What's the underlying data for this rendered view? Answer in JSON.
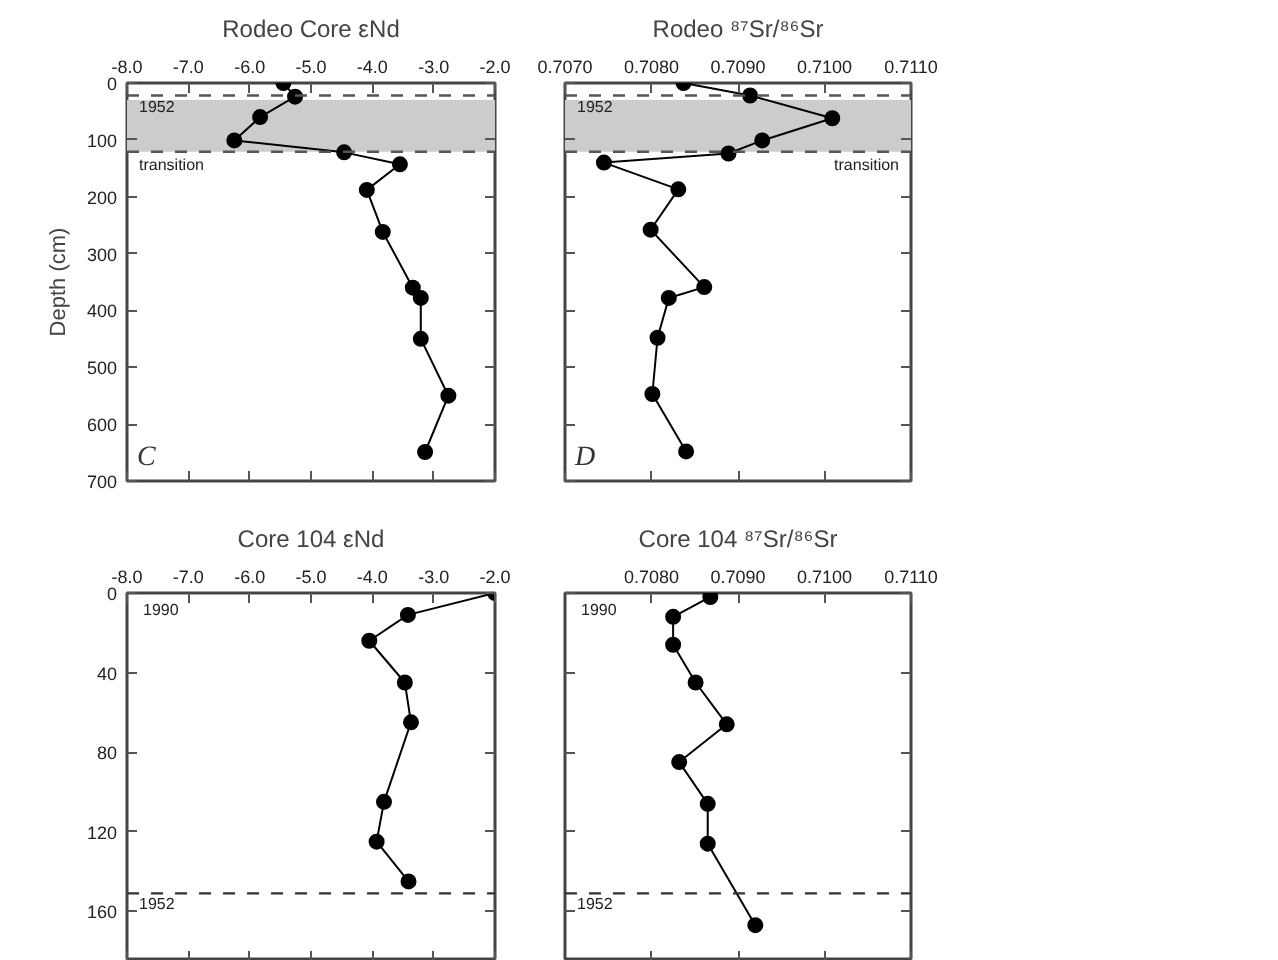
{
  "chart_data": [
    {
      "type": "line",
      "title": "Rodeo Core εNd",
      "ylabel": "Depth (cm)",
      "marker": "circle",
      "line_style": "solid",
      "grid": false,
      "xlim": [
        -8,
        -2
      ],
      "xticks": [
        {
          "value": -8,
          "label": "-8.0"
        },
        {
          "value": -7,
          "label": "-7.0"
        },
        {
          "value": -6,
          "label": "-6.0"
        },
        {
          "value": -5,
          "label": "-5.0"
        },
        {
          "value": -4,
          "label": "-4.0"
        },
        {
          "value": -3,
          "label": "-3.0"
        },
        {
          "value": -2,
          "label": "-2.0"
        }
      ],
      "ylim": [
        700,
        0
      ],
      "yticks": [
        0,
        100,
        200,
        300,
        400,
        500,
        600,
        700
      ],
      "series": [
        {
          "color": "#000000",
          "x": [
            -5.45,
            -5.26,
            -5.83,
            -6.25,
            -4.46,
            -3.55,
            -4.09,
            -3.83,
            -3.34,
            -3.21,
            -3.21,
            -2.76,
            -3.14
          ],
          "values": [
            0,
            24,
            60,
            101,
            122,
            143,
            188,
            262,
            360,
            378,
            450,
            550,
            649
          ]
        }
      ],
      "bands": [
        {
          "axis": "y",
          "from": 30,
          "to": 121,
          "color": "#cccccc"
        }
      ],
      "ref_lines": [
        {
          "axis": "y",
          "value": 22,
          "color": "#555555",
          "line_style": "dashed"
        },
        {
          "axis": "y",
          "value": 121,
          "color": "#555555",
          "line_style": "dashed"
        }
      ],
      "annotations": [
        "C",
        "1952",
        "transition"
      ]
    },
    {
      "type": "line",
      "title": "Rodeo ⁸⁷Sr/⁸⁶Sr",
      "marker": "circle",
      "line_style": "solid",
      "grid": false,
      "tick_labels": "x",
      "xlim": [
        0.707,
        0.711
      ],
      "xticks": [
        {
          "value": 0.707,
          "label": "0.7070"
        },
        {
          "value": 0.708,
          "label": "0.7080"
        },
        {
          "value": 0.709,
          "label": "0.7090"
        },
        {
          "value": 0.71,
          "label": "0.7100"
        },
        {
          "value": 0.711,
          "label": "0.7110"
        }
      ],
      "ylim": [
        700,
        0
      ],
      "yticks": [
        0,
        100,
        200,
        300,
        400,
        500,
        600,
        700
      ],
      "series": [
        {
          "color": "#000000",
          "x": [
            0.70837,
            0.70914,
            0.71009,
            0.70928,
            0.70889,
            0.70745,
            0.70831,
            0.70799,
            0.70861,
            0.7082,
            0.70807,
            0.70801,
            0.7084
          ],
          "values": [
            0,
            22,
            62,
            101,
            124,
            140,
            187,
            258,
            359,
            378,
            448,
            547,
            648
          ]
        }
      ],
      "bands": [
        {
          "axis": "y",
          "from": 30,
          "to": 121,
          "color": "#cccccc"
        }
      ],
      "ref_lines": [
        {
          "axis": "y",
          "value": 22,
          "color": "#555555",
          "line_style": "dashed"
        },
        {
          "axis": "y",
          "value": 121,
          "color": "#555555",
          "line_style": "dashed"
        }
      ],
      "annotations": [
        "D",
        "1952",
        "transition"
      ]
    },
    {
      "type": "line",
      "title": "Core 104 εNd",
      "marker": "circle",
      "line_style": "solid",
      "grid": false,
      "xlim": [
        -8,
        -2
      ],
      "xticks": [
        {
          "value": -8,
          "label": "-8.0"
        },
        {
          "value": -7,
          "label": "-7.0"
        },
        {
          "value": -6,
          "label": "-6.0"
        },
        {
          "value": -5,
          "label": "-5.0"
        },
        {
          "value": -4,
          "label": "-4.0"
        },
        {
          "value": -3,
          "label": "-3.0"
        },
        {
          "value": -2,
          "label": "-2.0"
        }
      ],
      "ylim": [
        185,
        0
      ],
      "yticks": [
        0,
        40,
        80,
        120,
        160
      ],
      "series": [
        {
          "color": "#000000",
          "x": [
            -2.0,
            -3.42,
            -4.05,
            -3.47,
            -3.37,
            -3.81,
            -3.93,
            -3.41
          ],
          "values": [
            0,
            11,
            24,
            45,
            65,
            105,
            125,
            145
          ]
        }
      ],
      "ref_lines": [
        {
          "axis": "y",
          "value": 151,
          "color": "#333333",
          "line_style": "dashed"
        }
      ],
      "annotations": [
        "1990",
        "1952"
      ]
    },
    {
      "type": "line",
      "title": "Core 104 ⁸⁷Sr/⁸⁶Sr",
      "marker": "circle",
      "line_style": "solid",
      "grid": false,
      "tick_labels": "x",
      "xlim": [
        0.707,
        0.711
      ],
      "xticks": [
        {
          "value": 0.708,
          "label": "0.7080"
        },
        {
          "value": 0.709,
          "label": "0.7090"
        },
        {
          "value": 0.71,
          "label": "0.7100"
        },
        {
          "value": 0.711,
          "label": "0.7110"
        }
      ],
      "ylim": [
        185,
        0
      ],
      "yticks": [
        0,
        40,
        80,
        120,
        160
      ],
      "series": [
        {
          "color": "#000000",
          "x": [
            0.70868,
            0.70825,
            0.70825,
            0.70851,
            0.70887,
            0.70832,
            0.70865,
            0.70865,
            0.7092
          ],
          "values": [
            2,
            12,
            26,
            45,
            66,
            85,
            106,
            126,
            167
          ]
        }
      ],
      "ref_lines": [
        {
          "axis": "y",
          "value": 151,
          "color": "#333333",
          "line_style": "dashed"
        }
      ],
      "annotations": [
        "1990",
        "1952"
      ]
    }
  ]
}
